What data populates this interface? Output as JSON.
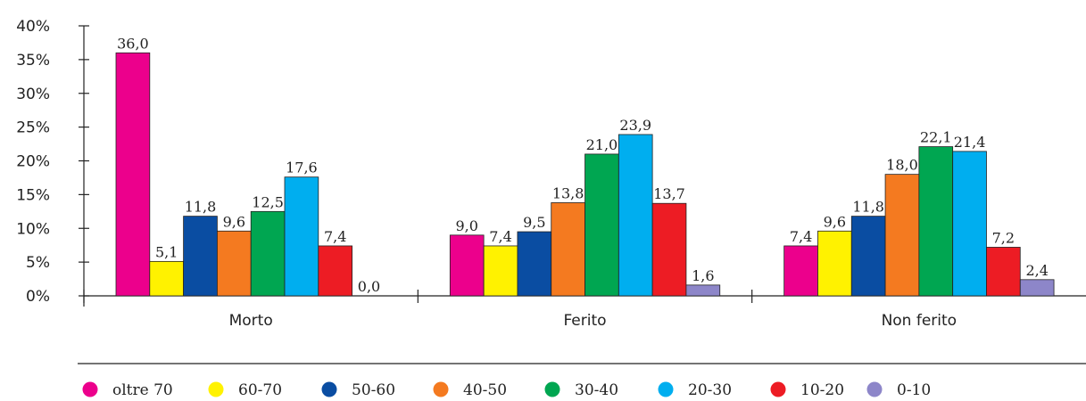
{
  "chart_data": {
    "type": "bar",
    "title": "",
    "xlabel": "",
    "ylabel": "",
    "ylim": [
      0,
      40
    ],
    "yticks": [
      "0%",
      "5%",
      "10%",
      "15%",
      "20%",
      "25%",
      "30%",
      "35%",
      "40%"
    ],
    "categories": [
      "Morto",
      "Ferito",
      "Non ferito"
    ],
    "series": [
      {
        "name": "oltre 70",
        "color": "#ec008c",
        "values": [
          36.0,
          9.0,
          7.4
        ],
        "labels": [
          "36,0",
          "9,0",
          "7,4"
        ]
      },
      {
        "name": "60-70",
        "color": "#fff200",
        "values": [
          5.1,
          7.4,
          9.6
        ],
        "labels": [
          "5,1",
          "7,4",
          "9,6"
        ]
      },
      {
        "name": "50-60",
        "color": "#0a4da2",
        "values": [
          11.8,
          9.5,
          11.8
        ],
        "labels": [
          "11,8",
          "9,5",
          "11,8"
        ]
      },
      {
        "name": "40-50",
        "color": "#f47a20",
        "values": [
          9.6,
          13.8,
          18.0
        ],
        "labels": [
          "9,6",
          "13,8",
          "18,0"
        ]
      },
      {
        "name": "30-40",
        "color": "#00a651",
        "values": [
          12.5,
          21.0,
          22.1
        ],
        "labels": [
          "12,5",
          "21,0",
          "22,1"
        ]
      },
      {
        "name": "20-30",
        "color": "#00aeef",
        "values": [
          17.6,
          23.9,
          21.4
        ],
        "labels": [
          "17,6",
          "23,9",
          "21,4"
        ]
      },
      {
        "name": "10-20",
        "color": "#ed1c24",
        "values": [
          7.4,
          13.7,
          7.2
        ],
        "labels": [
          "7,4",
          "13,7",
          "7,2"
        ]
      },
      {
        "name": "0-10",
        "color": "#8d86c9",
        "values": [
          0.0,
          1.6,
          2.4
        ],
        "labels": [
          "0,0",
          "1,6",
          "2,4"
        ]
      }
    ],
    "legend_position": "bottom",
    "grid": false
  }
}
